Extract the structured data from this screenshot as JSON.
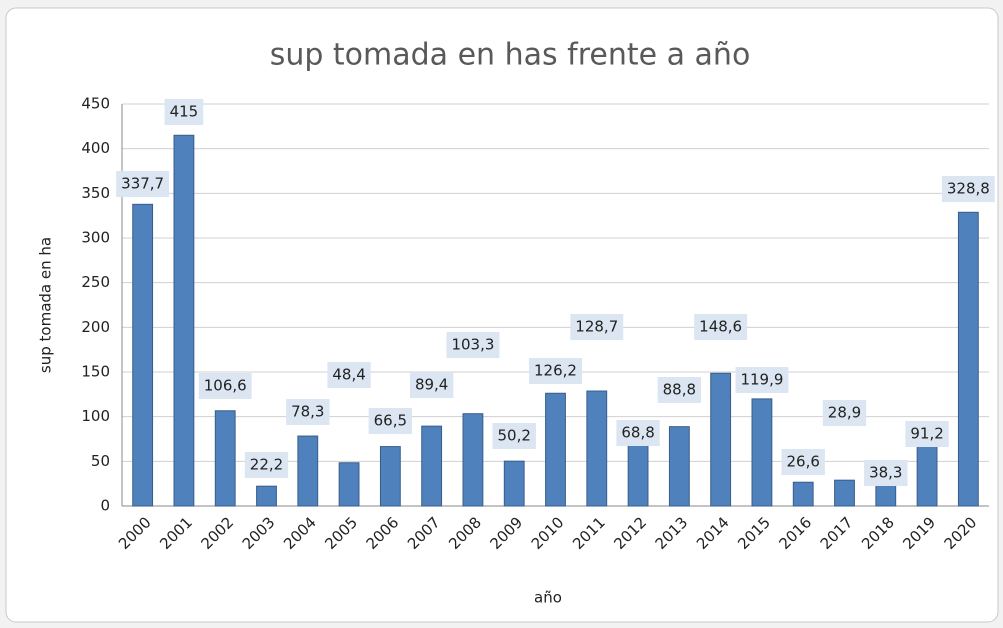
{
  "chart_data": {
    "type": "bar",
    "title": "sup tomada en has frente a año",
    "x_label": "año",
    "y_label": "sup tomada en ha",
    "categories": [
      "2000",
      "2001",
      "2002",
      "2003",
      "2004",
      "2005",
      "2006",
      "2007",
      "2008",
      "2009",
      "2010",
      "2011",
      "2012",
      "2013",
      "2014",
      "2015",
      "2016",
      "2017",
      "2018",
      "2019",
      "2020"
    ],
    "values": [
      337.7,
      415,
      106.6,
      22.2,
      78.3,
      48.4,
      66.5,
      89.4,
      103.3,
      50.2,
      126.2,
      128.7,
      68.8,
      88.8,
      148.6,
      119.9,
      26.6,
      28.9,
      38.3,
      91.2,
      328.8
    ],
    "value_labels": [
      "337,7",
      "415",
      "106,6",
      "22,2",
      "78,3",
      "48,4",
      "66,5",
      "89,4",
      "103,3",
      "50,2",
      "126,2",
      "128,7",
      "68,8",
      "88,8",
      "148,6",
      "119,9",
      "26,6",
      "28,9",
      "38,3",
      "91,2",
      "328,8"
    ],
    "color": "#4f81bd",
    "ylim": [
      0,
      450
    ],
    "yticks": [
      0,
      50,
      100,
      150,
      200,
      250,
      300,
      350,
      400,
      450
    ],
    "grid": true
  }
}
